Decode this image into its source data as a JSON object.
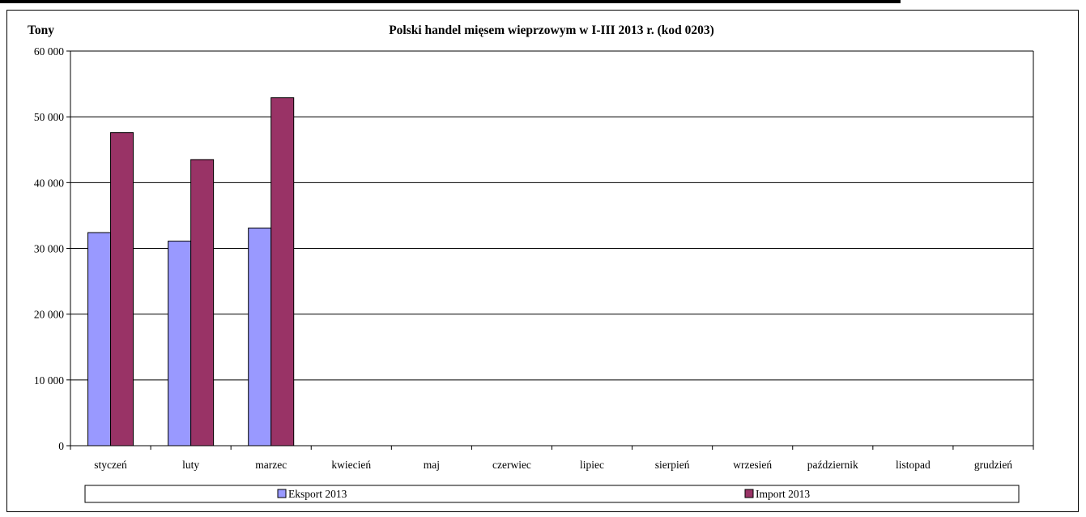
{
  "chart_data": {
    "type": "bar",
    "title": "Polski handel mięsem wieprzowym w I-III 2013 r. (kod 0203)",
    "ylabel": "Tony",
    "xlabel": "",
    "ylim": [
      0,
      60000
    ],
    "yticks": [
      "0",
      "10 000",
      "20 000",
      "30 000",
      "40 000",
      "50 000",
      "60 000"
    ],
    "categories": [
      "styczeń",
      "luty",
      "marzec",
      "kwiecień",
      "maj",
      "czerwiec",
      "lipiec",
      "sierpień",
      "wrzesień",
      "październik",
      "listopad",
      "grudzień"
    ],
    "series": [
      {
        "name": "Eksport 2013",
        "color": "#9999ff",
        "values": [
          32400,
          31100,
          33100,
          null,
          null,
          null,
          null,
          null,
          null,
          null,
          null,
          null
        ]
      },
      {
        "name": "Import 2013",
        "color": "#993366",
        "values": [
          47600,
          43500,
          52900,
          null,
          null,
          null,
          null,
          null,
          null,
          null,
          null,
          null
        ]
      }
    ],
    "grid": "horizontal",
    "legend_position": "bottom"
  }
}
